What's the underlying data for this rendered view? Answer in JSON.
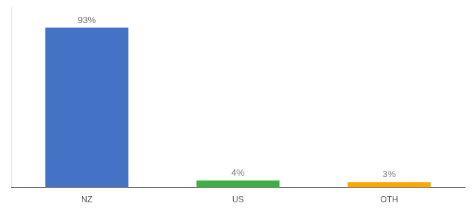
{
  "chart_data": {
    "type": "bar",
    "categories": [
      "NZ",
      "US",
      "OTH"
    ],
    "values": [
      93,
      4,
      3
    ],
    "value_labels": [
      "93%",
      "4%",
      "3%"
    ],
    "colors": [
      "#4472C4",
      "#3CB043",
      "#FFA500"
    ],
    "ylim": [
      0,
      105
    ],
    "data_labels": true,
    "tick_labels": "x",
    "grid": false
  }
}
